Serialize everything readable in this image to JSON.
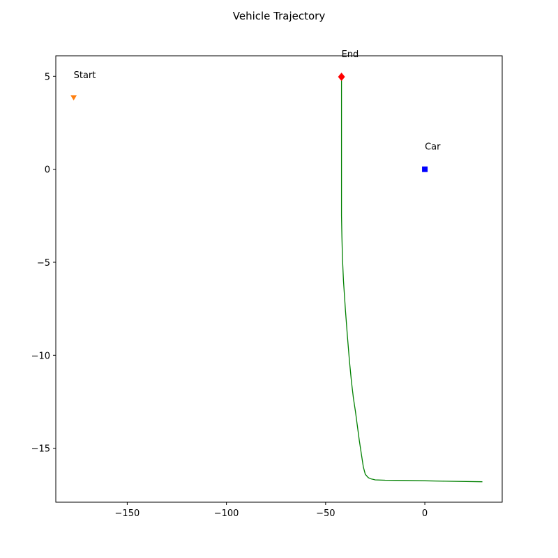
{
  "chart_data": {
    "type": "line",
    "title": "Vehicle Trajectory",
    "xlabel": "",
    "ylabel": "",
    "xlim": [
      -186,
      39
    ],
    "ylim": [
      -17.9,
      6.1
    ],
    "x_ticks": [
      -150,
      -100,
      -50,
      0
    ],
    "x_tick_labels": [
      "−150",
      "−100",
      "−50",
      "0"
    ],
    "y_ticks": [
      5,
      0,
      -5,
      -10,
      -15
    ],
    "y_tick_labels": [
      "5",
      "0",
      "−5",
      "−10",
      "−15"
    ],
    "grid": false,
    "series": [
      {
        "kind": "line",
        "color": "#008000",
        "x": [
          29,
          10,
          0,
          -10,
          -20,
          -25,
          -27,
          -28.5,
          -30,
          -31,
          -32,
          -33,
          -34,
          -35,
          -36,
          -37,
          -38,
          -39,
          -40,
          -41,
          -41.5,
          -41.8,
          -42,
          -42,
          -42,
          -42,
          -42
        ],
        "y": [
          -16.8,
          -16.77,
          -16.75,
          -16.73,
          -16.72,
          -16.7,
          -16.65,
          -16.58,
          -16.4,
          -16.0,
          -15.3,
          -14.6,
          -13.8,
          -13.0,
          -12.3,
          -11.4,
          -10.3,
          -9.0,
          -7.6,
          -6.0,
          -4.8,
          -3.6,
          -2.5,
          -1.0,
          1.0,
          3.0,
          4.97
        ]
      },
      {
        "kind": "marker",
        "shape": "triangle-down",
        "color": "#ff7f0e",
        "x": [
          -177
        ],
        "y": [
          3.85
        ],
        "label": "Start"
      },
      {
        "kind": "marker",
        "shape": "diamond",
        "color": "#ff0000",
        "x": [
          -42
        ],
        "y": [
          4.97
        ],
        "label": "End"
      },
      {
        "kind": "marker",
        "shape": "square",
        "color": "#0000ff",
        "x": [
          0
        ],
        "y": [
          0
        ],
        "label": "Car"
      }
    ]
  }
}
